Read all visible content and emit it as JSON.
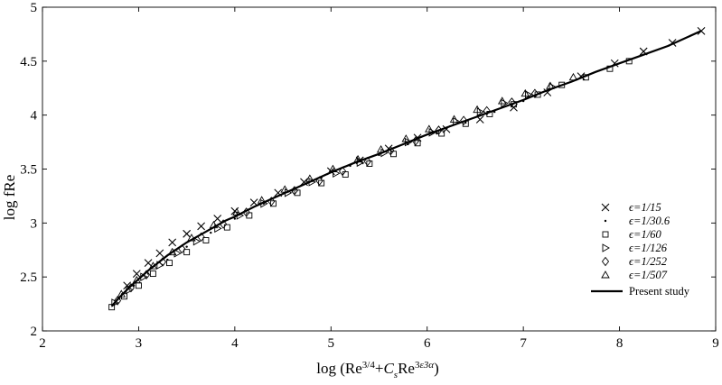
{
  "chart_data": {
    "type": "scatter",
    "title": "",
    "xlabel_parts": [
      "log (Re",
      "3/4",
      "+",
      "C",
      "s",
      "Re",
      "3",
      "ε",
      "3α",
      ")"
    ],
    "ylabel": "log fRe",
    "xlim": [
      2,
      9
    ],
    "ylim": [
      2,
      5
    ],
    "x_ticks": [
      "2",
      "3",
      "4",
      "5",
      "6",
      "7",
      "8",
      "9"
    ],
    "y_ticks": [
      "2",
      "2.5",
      "3",
      "3.5",
      "4",
      "4.5",
      "5"
    ],
    "grid": false,
    "legend_position": "lower-right",
    "series": [
      {
        "name": "ϵ=1/15",
        "marker": "x",
        "x": [
          2.88,
          2.98,
          3.1,
          3.22,
          3.35,
          3.5,
          3.65,
          3.82,
          4.0,
          4.2,
          4.45,
          4.72,
          5.0,
          5.3,
          5.6,
          5.9,
          6.2,
          6.55,
          6.9,
          7.25,
          7.6,
          7.95,
          8.25,
          8.55,
          8.85
        ],
        "y": [
          2.42,
          2.53,
          2.63,
          2.72,
          2.82,
          2.9,
          2.97,
          3.04,
          3.11,
          3.19,
          3.28,
          3.38,
          3.48,
          3.58,
          3.69,
          3.79,
          3.87,
          3.96,
          4.07,
          4.21,
          4.36,
          4.48,
          4.59,
          4.67,
          4.78
        ]
      },
      {
        "name": "ϵ=1/30.6",
        "marker": "dot",
        "x": [
          2.8,
          2.95,
          3.1,
          3.3,
          3.5,
          3.75,
          4.0,
          4.3,
          4.6,
          4.9,
          5.2,
          5.5,
          5.8,
          6.1,
          6.4,
          6.7,
          7.0
        ],
        "y": [
          2.3,
          2.42,
          2.53,
          2.66,
          2.78,
          2.91,
          3.04,
          3.18,
          3.3,
          3.42,
          3.53,
          3.63,
          3.73,
          3.83,
          3.93,
          4.03,
          4.13
        ]
      },
      {
        "name": "ϵ=1/60",
        "marker": "square",
        "x": [
          2.72,
          2.85,
          3.0,
          3.15,
          3.32,
          3.5,
          3.7,
          3.92,
          4.15,
          4.4,
          4.65,
          4.9,
          5.15,
          5.4,
          5.65,
          5.9,
          6.15,
          6.4,
          6.65,
          6.9,
          7.15,
          7.4,
          7.65,
          7.9,
          8.1
        ],
        "y": [
          2.22,
          2.32,
          2.42,
          2.53,
          2.63,
          2.73,
          2.84,
          2.96,
          3.07,
          3.18,
          3.28,
          3.37,
          3.45,
          3.55,
          3.64,
          3.74,
          3.83,
          3.92,
          4.01,
          4.1,
          4.19,
          4.28,
          4.35,
          4.43,
          4.5
        ]
      },
      {
        "name": "ϵ=1/126",
        "marker": "triangle-right",
        "x": [
          2.75,
          2.9,
          3.05,
          3.22,
          3.4,
          3.6,
          3.82,
          4.05,
          4.3,
          4.55,
          4.8,
          5.05,
          5.3,
          5.55,
          5.8,
          6.05,
          6.3,
          6.55,
          6.8,
          7.05,
          7.3
        ],
        "y": [
          2.26,
          2.38,
          2.5,
          2.61,
          2.72,
          2.83,
          2.95,
          3.07,
          3.18,
          3.28,
          3.38,
          3.46,
          3.56,
          3.65,
          3.75,
          3.84,
          3.94,
          4.03,
          4.11,
          4.19,
          4.26
        ]
      },
      {
        "name": "ϵ=1/252",
        "marker": "diamond",
        "x": [
          2.78,
          2.92,
          3.08,
          3.25,
          3.45,
          3.65,
          3.88,
          4.12,
          4.38,
          4.62,
          4.88,
          5.12,
          5.38,
          5.62,
          5.88,
          6.12,
          6.38,
          6.62,
          6.88,
          7.12
        ],
        "y": [
          2.28,
          2.4,
          2.52,
          2.64,
          2.76,
          2.87,
          2.99,
          3.1,
          3.2,
          3.3,
          3.39,
          3.48,
          3.57,
          3.67,
          3.76,
          3.86,
          3.95,
          4.04,
          4.12,
          4.2
        ]
      },
      {
        "name": "ϵ=1/507",
        "marker": "triangle-up",
        "x": [
          2.82,
          2.98,
          3.15,
          3.35,
          3.55,
          3.78,
          4.02,
          4.28,
          4.52,
          4.78,
          5.02,
          5.28,
          5.52,
          5.78,
          6.02,
          6.28,
          6.52,
          6.78,
          7.02,
          7.28,
          7.52
        ],
        "y": [
          2.34,
          2.47,
          2.6,
          2.73,
          2.86,
          2.98,
          3.1,
          3.21,
          3.31,
          3.41,
          3.5,
          3.59,
          3.68,
          3.78,
          3.87,
          3.96,
          4.05,
          4.13,
          4.2,
          4.27,
          4.35
        ]
      },
      {
        "name": "Present study",
        "marker": "line",
        "x": [
          2.72,
          2.8,
          2.9,
          3.0,
          3.1,
          3.2,
          3.3,
          3.4,
          3.5,
          3.6,
          3.7,
          3.8,
          3.9,
          4.0,
          4.2,
          4.4,
          4.6,
          4.8,
          5.0,
          5.25,
          5.5,
          5.75,
          6.0,
          6.25,
          6.5,
          6.75,
          7.0,
          7.25,
          7.5,
          7.75,
          8.0,
          8.25,
          8.5,
          8.85
        ],
        "y": [
          2.23,
          2.31,
          2.4,
          2.48,
          2.56,
          2.63,
          2.7,
          2.76,
          2.82,
          2.87,
          2.92,
          2.97,
          3.02,
          3.06,
          3.15,
          3.23,
          3.31,
          3.39,
          3.47,
          3.56,
          3.64,
          3.73,
          3.82,
          3.9,
          3.98,
          4.06,
          4.14,
          4.23,
          4.31,
          4.4,
          4.48,
          4.56,
          4.64,
          4.78
        ]
      }
    ]
  }
}
